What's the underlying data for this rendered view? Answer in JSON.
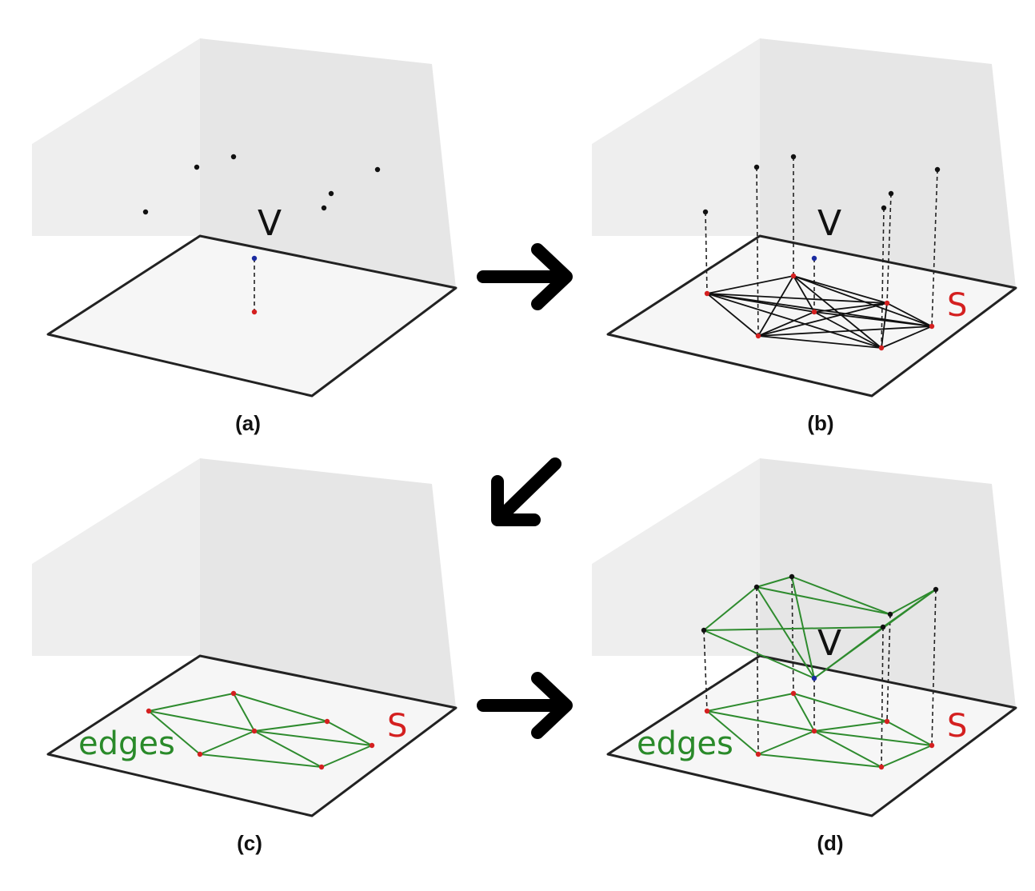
{
  "panels": [
    {
      "id": "a",
      "caption": "(a)",
      "v_label": "V",
      "s_label": "",
      "edges_label": ""
    },
    {
      "id": "b",
      "caption": "(b)",
      "v_label": "V",
      "s_label": "S",
      "edges_label": ""
    },
    {
      "id": "c",
      "caption": "(c)",
      "v_label": "",
      "s_label": "S",
      "edges_label": "edges"
    },
    {
      "id": "d",
      "caption": "(d)",
      "v_label": "V",
      "s_label": "S",
      "edges_label": "edges"
    }
  ],
  "colors": {
    "wall": "#ebebeb",
    "floor": "#f3f3f3",
    "outline": "#222222",
    "point": "#111111",
    "projection": "#d42020",
    "blue_point": "#1a2aa0",
    "complete_edge": "#111111",
    "triangulation_edge": "#2e8b2e",
    "arrow": "#000000"
  }
}
